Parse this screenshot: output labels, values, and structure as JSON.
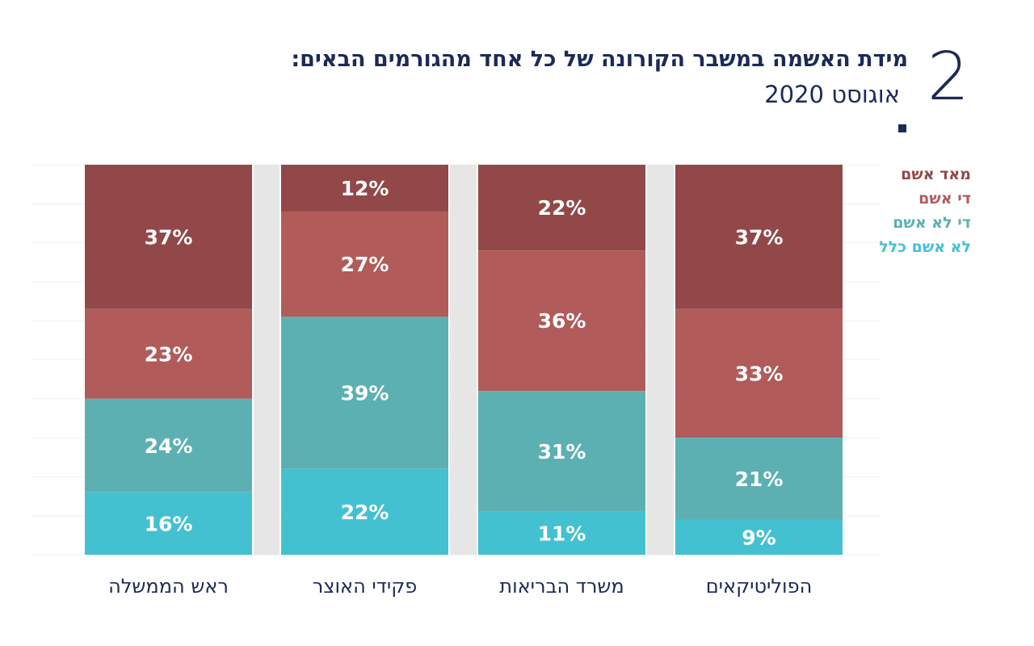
{
  "header": {
    "number": "2",
    "title": "מידת האשמה במשבר הקורונה של כל אחד מהגורמים הבאים:",
    "subtitle": "אוגוסט 2020"
  },
  "colors": {
    "very_guilty": "#924848",
    "somewhat_guilty": "#b15b5b",
    "not_so_guilty": "#5cb0b2",
    "not_guilty": "#44c1d1",
    "title": "#1b2a57",
    "gutter": "#e6e6e6"
  },
  "chart_data": {
    "type": "bar",
    "stacked": true,
    "normalized": true,
    "categories": [
      "ראש הממשלה",
      "פקידי האוצר",
      "משרד הבריאות",
      "הפוליטיקאים"
    ],
    "series": [
      {
        "name": "מאד אשם",
        "values": [
          37,
          12,
          22,
          37
        ],
        "labels": [
          "37%",
          "12%",
          "22%",
          "37%"
        ]
      },
      {
        "name": "די אשם",
        "values": [
          23,
          27,
          36,
          33
        ],
        "labels": [
          "23%",
          "27%",
          "36%",
          "33%"
        ]
      },
      {
        "name": "די לא אשם",
        "values": [
          24,
          39,
          31,
          21
        ],
        "labels": [
          "24%",
          "39%",
          "31%",
          "21%"
        ]
      },
      {
        "name": "לא אשם כלל",
        "values": [
          16,
          22,
          11,
          9
        ],
        "labels": [
          "16%",
          "22%",
          "11%",
          "9%"
        ]
      }
    ],
    "legend_position": "top-right"
  }
}
